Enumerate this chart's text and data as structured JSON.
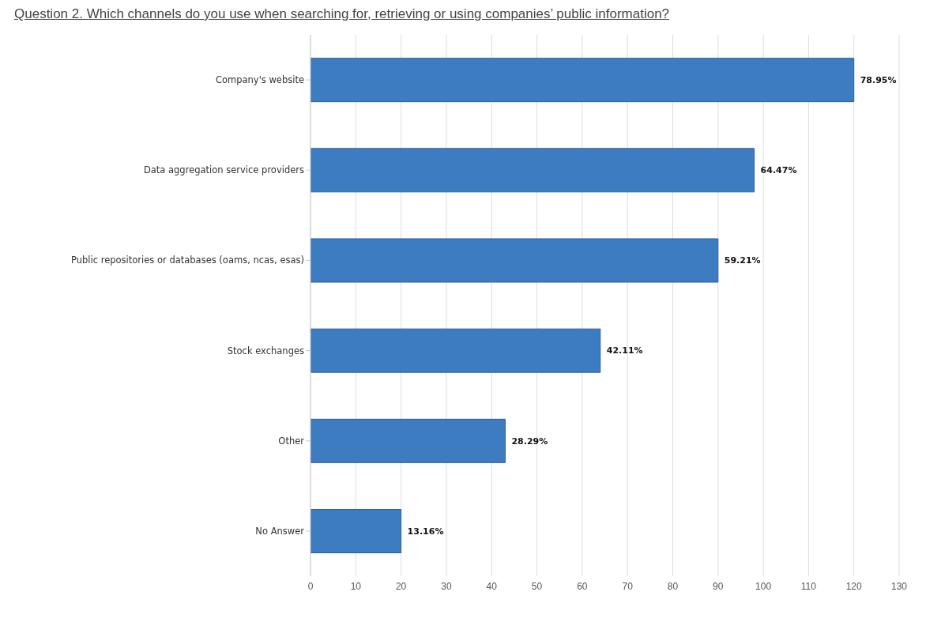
{
  "chart_data": {
    "type": "bar",
    "orientation": "horizontal",
    "title": "Question 2. Which channels do you use when searching for, retrieving or using companies’ public information?",
    "categories": [
      "Company's website",
      "Data aggregation service providers",
      "Public repositories or databases (oams, ncas, esas)",
      "Stock exchanges",
      "Other",
      "No Answer"
    ],
    "values": [
      120,
      98,
      90,
      64,
      43,
      20
    ],
    "annotations": [
      {
        "text": "78.95%",
        "x": 120,
        "y": "Company's website"
      },
      {
        "text": "64.47%",
        "x": 98,
        "y": "Data aggregation service providers"
      },
      {
        "text": "59.21%",
        "x": 90,
        "y": "Public repositories or databases (oams, ncas, esas)"
      },
      {
        "text": "42.11%",
        "x": 64,
        "y": "Stock exchanges"
      },
      {
        "text": "28.29%",
        "x": 43,
        "y": "Other"
      },
      {
        "text": "13.16%",
        "x": 20,
        "y": "No Answer"
      }
    ],
    "color": "#3d7cc0",
    "xlim": [
      0,
      130
    ],
    "xticks": [
      0,
      10,
      20,
      30,
      40,
      50,
      60,
      70,
      80,
      90,
      100,
      110,
      120,
      130
    ],
    "grid": "x"
  }
}
